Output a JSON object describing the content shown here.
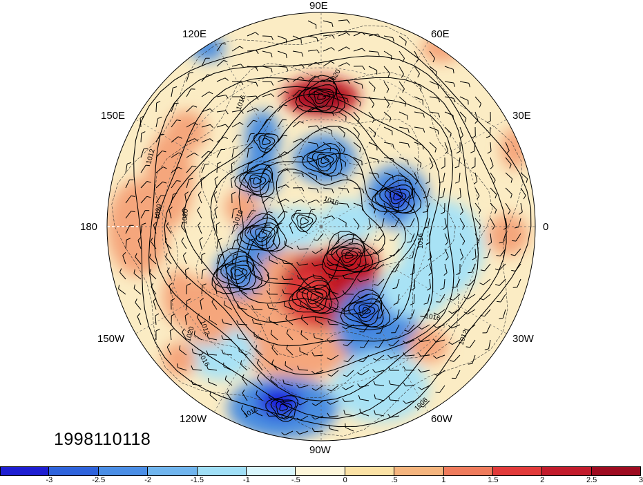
{
  "map": {
    "projection": "north-polar-stereographic",
    "longitude_labels": [
      {
        "id": "lon-90e",
        "text": "90E"
      },
      {
        "id": "lon-60e",
        "text": "60E"
      },
      {
        "id": "lon-30e",
        "text": "30E"
      },
      {
        "id": "lon-0",
        "text": "0"
      },
      {
        "id": "lon-30w",
        "text": "30W"
      },
      {
        "id": "lon-60w",
        "text": "60W"
      },
      {
        "id": "lon-90w",
        "text": "90W"
      },
      {
        "id": "lon-120w",
        "text": "120W"
      },
      {
        "id": "lon-150w",
        "text": "150W"
      },
      {
        "id": "lon-180",
        "text": "180"
      },
      {
        "id": "lon-150e",
        "text": "150E"
      },
      {
        "id": "lon-120e",
        "text": "120E"
      }
    ],
    "contour_labels": [
      "1020",
      "1016",
      "1012",
      "1016",
      "1016",
      "1020",
      "1020",
      "1016",
      "1012",
      "1020",
      "1016",
      "1012",
      "1008",
      "1012",
      "1016"
    ],
    "shading_colors": {
      "strong_negative": "#1a1adc",
      "negative": "#4a8de0",
      "weak_negative": "#a8e2f5",
      "weak_positive": "#fbe9bd",
      "positive": "#f5a67b",
      "strong_positive": "#c01722"
    }
  },
  "timestamp": "1998110118",
  "colorbar": {
    "colors": [
      "#1e1ed2",
      "#2e63dc",
      "#4a8ee6",
      "#70b5ee",
      "#a0dff6",
      "#d9f6fc",
      "#fdf6da",
      "#fbe2a5",
      "#f5b57e",
      "#ef7b5c",
      "#e23a3a",
      "#c21b2b",
      "#9e0b20"
    ],
    "tick_labels": [
      "-3",
      "-2.5",
      "-2",
      "-1.5",
      "-1",
      "-.5",
      "0",
      ".5",
      "1",
      "1.5",
      "2",
      "2.5",
      "3"
    ]
  }
}
